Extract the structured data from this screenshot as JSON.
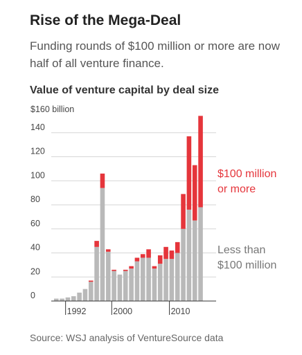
{
  "title": "Rise of the Mega-Deal",
  "subtitle": "Funding rounds of $100 million or more are now half of all venture finance.",
  "source": "Source: WSJ analysis of VentureSource data",
  "chart_data": {
    "type": "bar",
    "stacked": true,
    "title": "Value of venture capital by deal size",
    "ylabel": "$160 billion",
    "ylim": [
      0,
      160
    ],
    "y_ticks": [
      0,
      20,
      40,
      60,
      80,
      100,
      120,
      140
    ],
    "x_tick_labels": [
      "1992",
      "2000",
      "2010"
    ],
    "categories": [
      1990,
      1991,
      1992,
      1993,
      1994,
      1995,
      1996,
      1997,
      1998,
      1999,
      2000,
      2001,
      2002,
      2003,
      2004,
      2005,
      2006,
      2007,
      2008,
      2009,
      2010,
      2011,
      2012,
      2013,
      2014,
      2015,
      2016,
      2017
    ],
    "series": [
      {
        "name": "Less than $100 million",
        "label_lines": [
          "Less than",
          "$100 million"
        ],
        "color": "#b9b9b9",
        "values": [
          2,
          2,
          3,
          4,
          7,
          10,
          16,
          45,
          94,
          41,
          25,
          22,
          25,
          27,
          33,
          36,
          36,
          27,
          31,
          35,
          35,
          40,
          60,
          76,
          67,
          78,
          0,
          0
        ]
      },
      {
        "name": "$100 million or more",
        "label_lines": [
          "$100 million",
          "or more"
        ],
        "color": "#e5353b",
        "values": [
          0,
          0,
          0,
          0,
          0,
          0,
          1,
          5,
          12,
          2,
          1,
          0,
          1,
          2,
          3,
          3,
          7,
          2,
          7,
          10,
          7,
          9,
          29,
          61,
          46,
          76,
          0,
          0
        ]
      }
    ]
  }
}
